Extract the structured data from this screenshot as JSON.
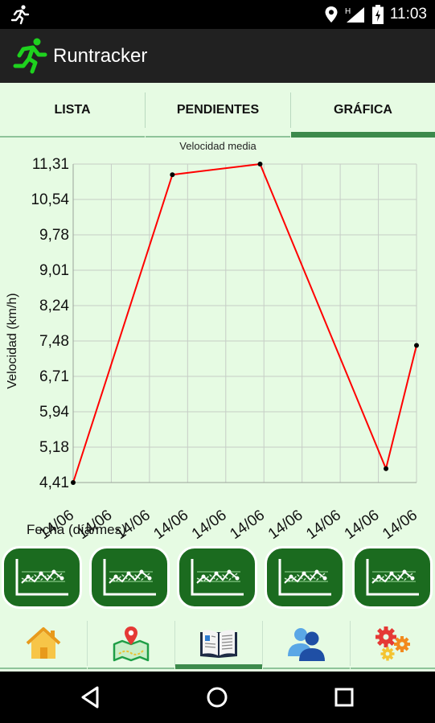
{
  "status_bar": {
    "time": "11:03",
    "network_label": "H",
    "icons": [
      "running-notification-icon",
      "location-icon",
      "signal-icon",
      "battery-charging-icon"
    ]
  },
  "app_bar": {
    "title": "Runtracker",
    "logo_icon": "running-man-icon",
    "logo_color": "#1ed21e"
  },
  "tabs": [
    {
      "label": "LISTA",
      "active": false
    },
    {
      "label": "PENDIENTES",
      "active": false
    },
    {
      "label": "GRÁFICA",
      "active": true
    }
  ],
  "chart_data": {
    "type": "line",
    "title": "Velocidad media",
    "ylabel": "Velocidad (km/h)",
    "xlabel": "Fecha (día/mes)",
    "y_ticks": [
      "11,31",
      "10,54",
      "9,78",
      "9,01",
      "8,24",
      "7,48",
      "6,71",
      "5,94",
      "5,18",
      "4,41"
    ],
    "ylim": [
      4.41,
      11.31
    ],
    "x_ticks": [
      "14/06",
      "14/06",
      "14/06",
      "14/06",
      "14/06",
      "14/06",
      "14/06",
      "14/06",
      "14/06",
      "14/06"
    ],
    "series": [
      {
        "points": [
          {
            "x": 0,
            "y": 4.41
          },
          {
            "x": 2.6,
            "y": 11.08
          },
          {
            "x": 4.9,
            "y": 11.31
          },
          {
            "x": 8.2,
            "y": 4.71
          },
          {
            "x": 9.0,
            "y": 7.38
          }
        ],
        "color": "#ff0000"
      }
    ],
    "grid": true,
    "line_color": "#ff0000",
    "point_color": "#000000"
  },
  "graph_buttons": [
    {
      "icon": "line-chart-icon"
    },
    {
      "icon": "line-chart-icon"
    },
    {
      "icon": "line-chart-icon"
    },
    {
      "icon": "line-chart-icon"
    },
    {
      "icon": "line-chart-icon"
    }
  ],
  "bottom_nav": [
    {
      "icon": "home-icon",
      "active": false
    },
    {
      "icon": "map-location-icon",
      "active": false
    },
    {
      "icon": "book-icon",
      "active": true
    },
    {
      "icon": "users-icon",
      "active": false
    },
    {
      "icon": "settings-gears-icon",
      "active": false
    }
  ],
  "colors": {
    "background": "#e6fbe3",
    "accent": "#3d8a4c",
    "button_green": "#1b6b1f"
  }
}
